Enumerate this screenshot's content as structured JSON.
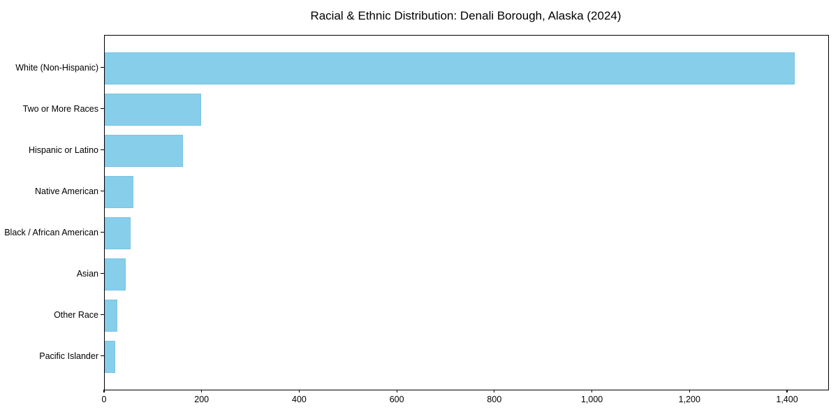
{
  "chart_data": {
    "type": "bar",
    "orientation": "horizontal",
    "title": "Racial & Ethnic Distribution: Denali Borough, Alaska (2024)",
    "categories": [
      "White (Non-Hispanic)",
      "Two or More Races",
      "Hispanic or Latino",
      "Native American",
      "Black / African American",
      "Asian",
      "Other Race",
      "Pacific Islander"
    ],
    "values": [
      1414,
      198,
      160,
      58,
      53,
      43,
      26,
      22
    ],
    "xlabel": "",
    "ylabel": "",
    "xlim": [
      0,
      1483
    ],
    "x_ticks": [
      0,
      200,
      400,
      600,
      800,
      1000,
      1200,
      1400
    ],
    "x_tick_labels": [
      "0",
      "200",
      "400",
      "600",
      "800",
      "1,000",
      "1,200",
      "1,400"
    ],
    "bar_color": "#87CEEB",
    "bar_edge_color": "#7cc4e2",
    "grid": false,
    "legend": false,
    "frame": true
  }
}
